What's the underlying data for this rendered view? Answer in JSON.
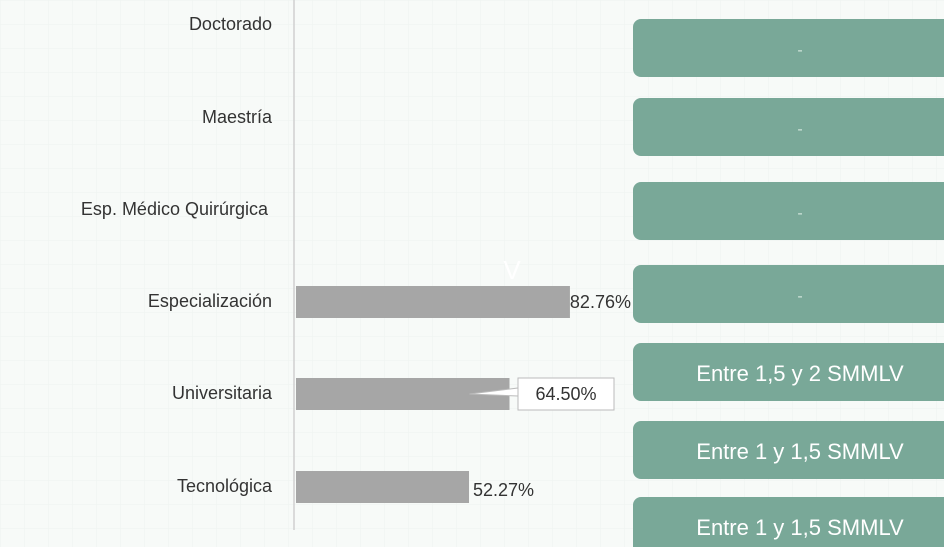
{
  "chart_data": {
    "type": "bar",
    "orientation": "horizontal",
    "categories": [
      "Doctorado",
      "Maestría",
      "Esp. Médico Quirúrgica",
      "Especialización",
      "Universitaria",
      "Tecnológica"
    ],
    "values": [
      null,
      null,
      null,
      82.76,
      64.5,
      52.27
    ],
    "value_labels": [
      null,
      null,
      null,
      "82.76%",
      "64.50%",
      "52.27%"
    ],
    "color": "#a6a6a6",
    "xlim": [
      0,
      100
    ],
    "annotation": "V"
  },
  "cards": {
    "color": "#79a898",
    "items": [
      "-",
      "-",
      "-",
      "-",
      "Entre 1,5 y 2 SMMLV",
      "Entre 1 y 1,5 SMMLV",
      "Entre 1 y 1,5 SMMLV"
    ]
  }
}
